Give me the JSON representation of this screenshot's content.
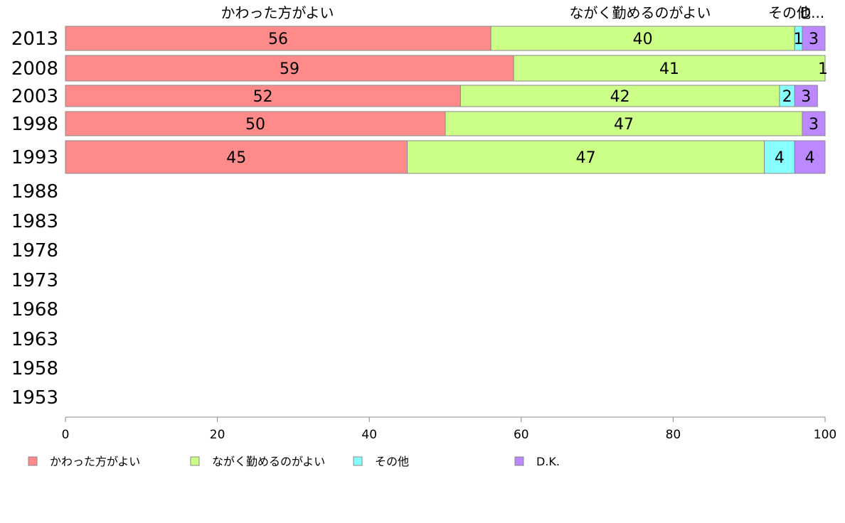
{
  "chart_data": {
    "type": "bar",
    "orientation": "horizontal",
    "stacked": true,
    "categories": [
      "2013",
      "2008",
      "2003",
      "1998",
      "1993",
      "1988",
      "1983",
      "1978",
      "1973",
      "1968",
      "1963",
      "1958",
      "1953"
    ],
    "series": [
      {
        "name": "かわった方がよい",
        "color": "#ff8a8a",
        "values": [
          56,
          59,
          52,
          50,
          45,
          null,
          null,
          null,
          null,
          null,
          null,
          null,
          null
        ]
      },
      {
        "name": "ながく勤めるのがよい",
        "color": "#ccff88",
        "values": [
          40,
          41,
          42,
          47,
          47,
          null,
          null,
          null,
          null,
          null,
          null,
          null,
          null
        ]
      },
      {
        "name": "その他",
        "color": "#88ffff",
        "values": [
          1,
          1,
          2,
          0,
          4,
          null,
          null,
          null,
          null,
          null,
          null,
          null,
          null
        ]
      },
      {
        "name": "D.K.",
        "color": "#bb88ff",
        "values": [
          3,
          0,
          3,
          3,
          4,
          null,
          null,
          null,
          null,
          null,
          null,
          null,
          null
        ]
      }
    ],
    "top_labels": [
      "かわった方がよい",
      "ながく勤めるのがよい",
      "その他",
      "D..."
    ],
    "data_labels": [
      [
        "56",
        "40",
        "1",
        "3"
      ],
      [
        "59",
        "41",
        "1",
        ""
      ],
      [
        "52",
        "42",
        "2",
        "3"
      ],
      [
        "50",
        "47",
        "",
        "3"
      ],
      [
        "45",
        "47",
        "4",
        "4"
      ]
    ],
    "xlim": [
      0,
      100
    ],
    "xticks": [
      0,
      20,
      40,
      60,
      80,
      100
    ],
    "grid": false,
    "legend_position": "bottom",
    "legend": [
      "かわった方がよい",
      "ながく勤めるのがよい",
      "その他",
      "D.K."
    ],
    "bar_outline_color": "#888888"
  }
}
